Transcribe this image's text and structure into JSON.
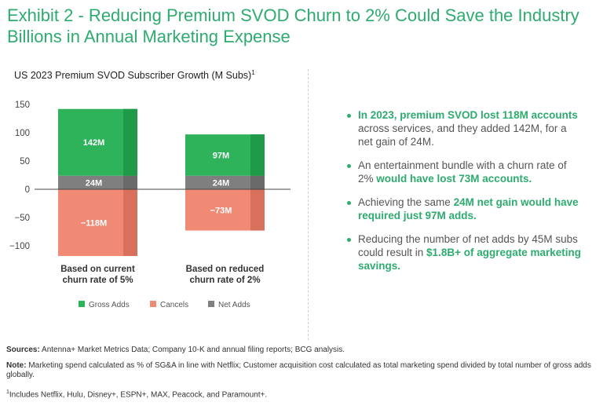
{
  "title": "Exhibit 2 - Reducing Premium SVOD Churn to 2% Could Save the Industry Billions in Annual Marketing Expense",
  "chart_title": "US 2023 Premium SVOD Subscriber Growth (M Subs)",
  "chart_title_sup": "1",
  "colors": {
    "gross": "#2eb35a",
    "gross_shade": "#1f9a48",
    "cancels": "#f08a74",
    "cancels_shade": "#d9705b",
    "net": "#7f7f7f",
    "net_shade": "#6a6a6a",
    "accent": "#2eab6f"
  },
  "chart_data": {
    "type": "bar",
    "stacked": true,
    "title": "US 2023 Premium SVOD Subscriber Growth (M Subs)",
    "xlabel": "",
    "ylabel": "",
    "ylim": [
      -120,
      170
    ],
    "yticks": [
      150,
      100,
      50,
      0,
      -50,
      -100
    ],
    "ytick_labels": [
      "150",
      "100",
      "50",
      "0",
      "−50",
      "−100"
    ],
    "categories": [
      "Based on current churn rate of 5%",
      "Based on reduced churn rate of 2%"
    ],
    "category_lines": [
      [
        "Based on current",
        "churn rate of 5%"
      ],
      [
        "Based on reduced",
        "churn rate of 2%"
      ]
    ],
    "series": [
      {
        "name": "Gross Adds",
        "key": "gross",
        "values": [
          142,
          97
        ],
        "labels": [
          "142M",
          "97M"
        ]
      },
      {
        "name": "Cancels",
        "key": "cancels",
        "values": [
          -118,
          -73
        ],
        "labels": [
          "−118M",
          "−73M"
        ]
      },
      {
        "name": "Net Adds",
        "key": "net",
        "values": [
          24,
          24
        ],
        "labels": [
          "24M",
          "24M"
        ]
      }
    ],
    "legend": [
      {
        "name": "Gross Adds",
        "key": "gross"
      },
      {
        "name": "Cancels",
        "key": "cancels"
      },
      {
        "name": "Net Adds",
        "key": "net"
      }
    ],
    "legend_position": "bottom"
  },
  "bullets": [
    [
      {
        "t": "In 2023, premium SVOD lost 118M accounts",
        "hl": true
      },
      {
        "t": " across services, and they added 142M, for a net gain of 24M.",
        "hl": false
      }
    ],
    [
      {
        "t": "An entertainment bundle with a churn rate of 2% ",
        "hl": false
      },
      {
        "t": "would have lost 73M accounts.",
        "hl": true
      }
    ],
    [
      {
        "t": "Achieving the same ",
        "hl": false
      },
      {
        "t": "24M net gain would have required just 97M adds.",
        "hl": true
      }
    ],
    [
      {
        "t": "Reducing the number of net adds by 45M subs could result in ",
        "hl": false
      },
      {
        "t": "$1.8B+ of aggregate marketing savings.",
        "hl": true
      }
    ]
  ],
  "footer": {
    "sources_label": "Sources:",
    "sources_text": " Antenna+ Market Metrics Data; Company 10-K and annual filing reports; BCG analysis.",
    "note_label": "Note:",
    "note_text": " Marketing spend calculated as % of SG&A in line with Netflix; Customer acquisition cost calculated as total marketing spend divided by total number of gross adds globally.",
    "footnote_sup": "1",
    "footnote_text": "Includes Netflix, Hulu, Disney+, ESPN+, MAX, Peacock, and Paramount+."
  }
}
